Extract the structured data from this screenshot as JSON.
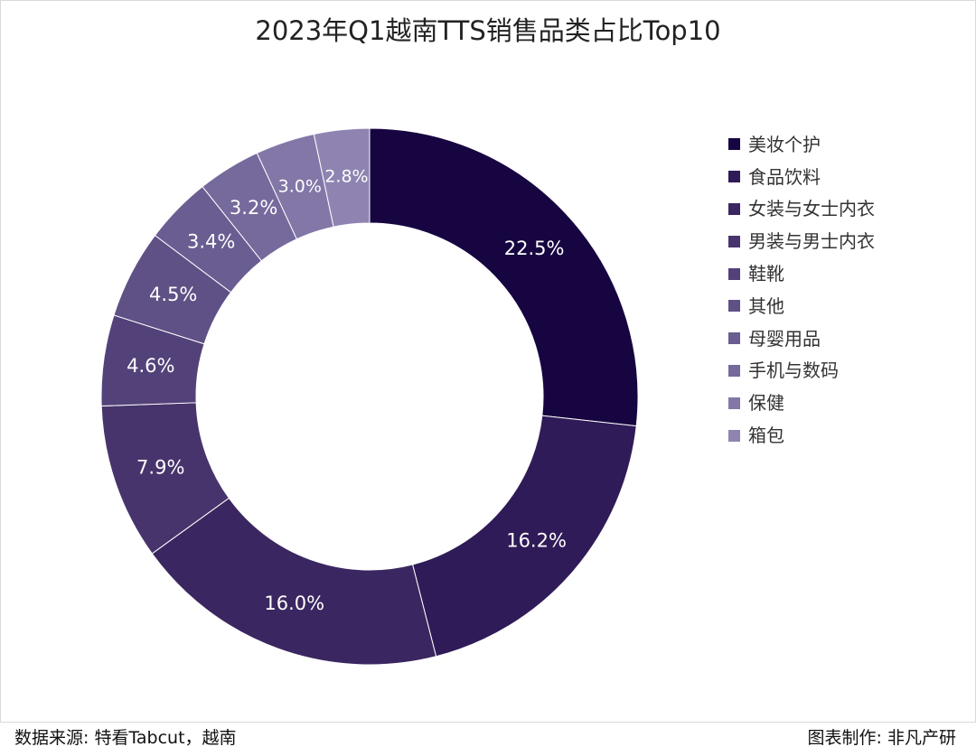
{
  "chart_data": {
    "type": "pie",
    "title": "2023年Q1越南TTS销售品类占比Top10",
    "series": [
      {
        "category": "美妆个护",
        "value": 22.5,
        "label": "22.5%",
        "color": "#160540"
      },
      {
        "category": "食品饮料",
        "value": 16.2,
        "label": "16.2%",
        "color": "#2f1b57"
      },
      {
        "category": "女装与女士内衣",
        "value": 16.0,
        "label": "16.0%",
        "color": "#3a2660"
      },
      {
        "category": "男装与男士内衣",
        "value": 7.9,
        "label": "7.9%",
        "color": "#47346c"
      },
      {
        "category": "鞋靴",
        "value": 4.6,
        "label": "4.6%",
        "color": "#534279"
      },
      {
        "category": "其他",
        "value": 4.5,
        "label": "4.5%",
        "color": "#5f5085"
      },
      {
        "category": "母婴用品",
        "value": 3.4,
        "label": "3.4%",
        "color": "#6a5d91"
      },
      {
        "category": "手机与数码",
        "value": 3.2,
        "label": "3.2%",
        "color": "#76699c"
      },
      {
        "category": "保健",
        "value": 3.0,
        "label": "3.0%",
        "color": "#8377a7"
      },
      {
        "category": "箱包",
        "value": 2.8,
        "label": "2.8%",
        "color": "#8f84b1"
      }
    ],
    "legend_position": "right"
  },
  "source": {
    "left": "数据来源: 特看Tabcut，越南",
    "right": "图表制作: 非凡产研"
  }
}
